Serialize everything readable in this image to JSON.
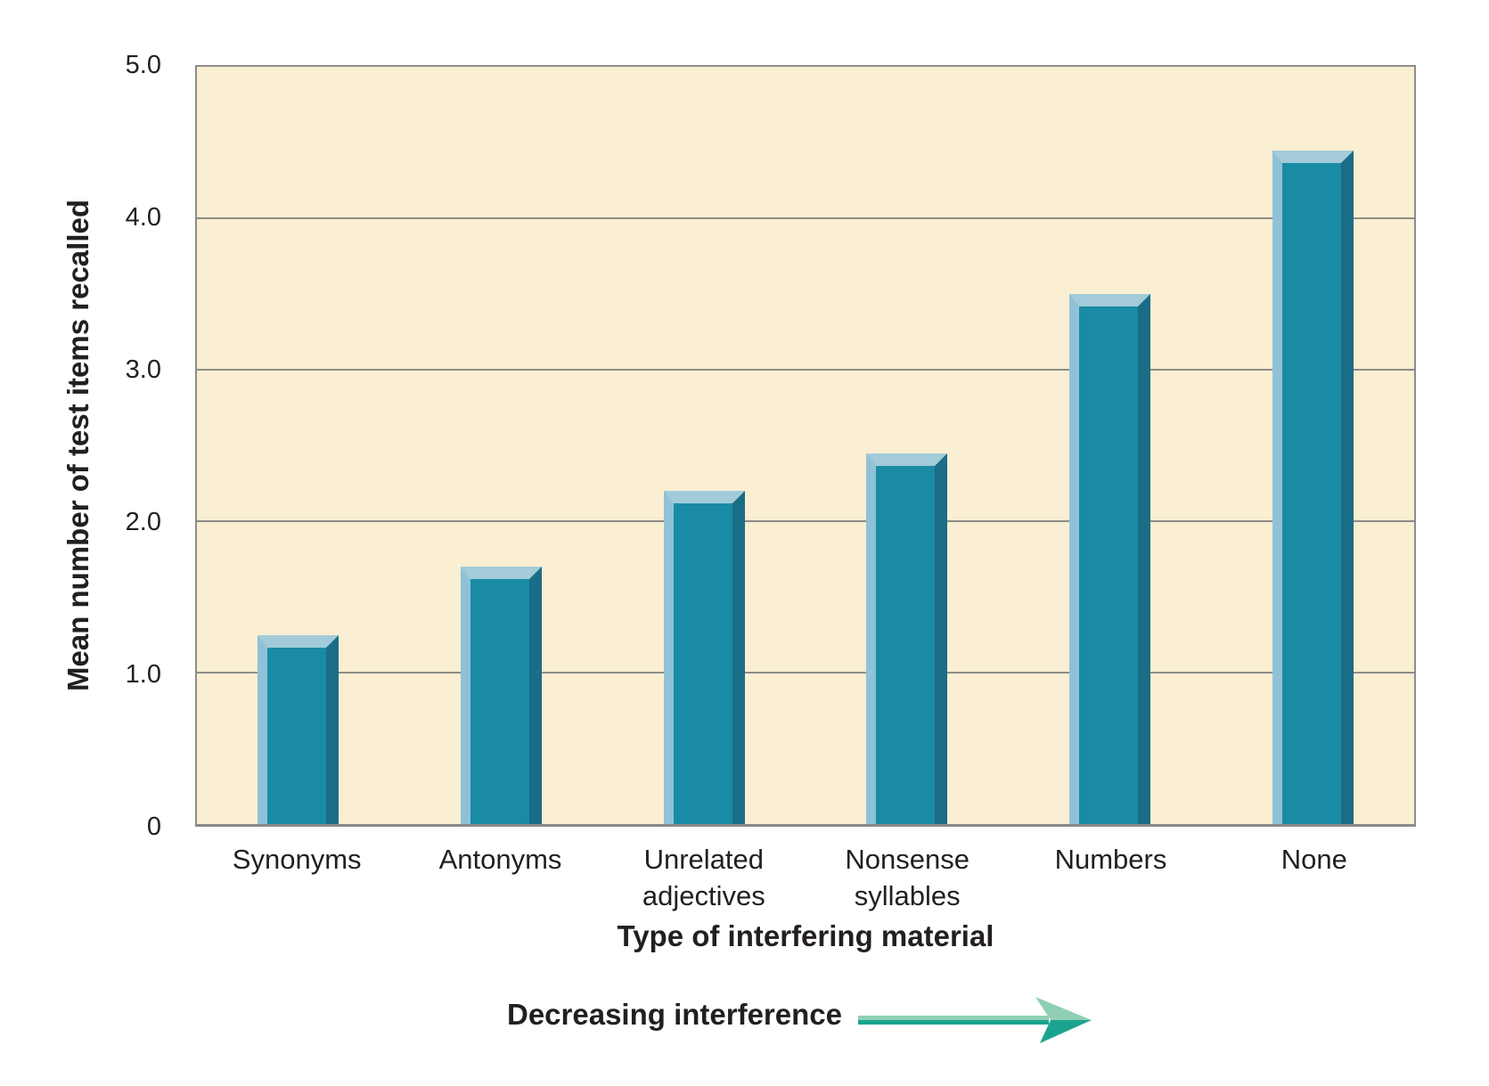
{
  "chart_data": {
    "type": "bar",
    "title": "",
    "categories": [
      "Synonyms",
      "Antonyms",
      "Unrelated\nadjectives",
      "Nonsense\nsyllables",
      "Numbers",
      "None"
    ],
    "values": [
      1.25,
      1.7,
      2.2,
      2.45,
      3.5,
      4.45
    ],
    "xlabel": "Type of interfering material",
    "ylabel": "Mean number of test items recalled",
    "ylim": [
      0,
      5
    ],
    "yticks": [
      {
        "value": 0,
        "label": "0"
      },
      {
        "value": 1,
        "label": "1.0"
      },
      {
        "value": 2,
        "label": "2.0"
      },
      {
        "value": 3,
        "label": "3.0"
      },
      {
        "value": 4,
        "label": "4.0"
      },
      {
        "value": 5,
        "label": "5.0"
      }
    ],
    "grid": "horizontal",
    "legend_position": "none",
    "bar_style": "3d-beveled"
  },
  "annotation": {
    "label": "Decreasing interference",
    "arrow_direction": "right"
  },
  "colors": {
    "page_background": "#ffffff",
    "plot_background": "#faeed3",
    "bar_face": "#1a8ba4",
    "bar_left_bevel": "#8fc2d6",
    "bar_top_bevel": "#a3cbda",
    "bar_right_bevel": "#1a6d86",
    "gridline": "#8d8d89",
    "text": "#231f20",
    "arrow_light": "#8fd0b4",
    "arrow_dark": "#1ba390"
  }
}
